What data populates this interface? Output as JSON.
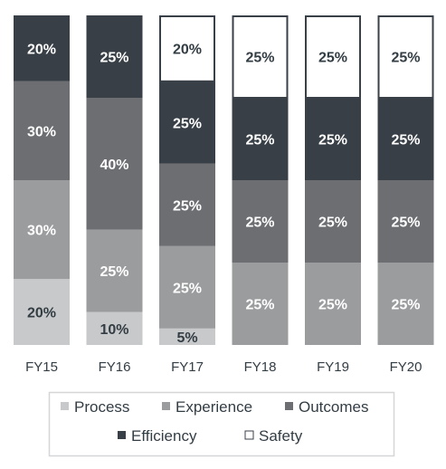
{
  "chart_data": {
    "type": "bar",
    "stacked": true,
    "normalized": true,
    "categories": [
      "FY15",
      "FY16",
      "FY17",
      "FY18",
      "FY19",
      "FY20"
    ],
    "series": [
      {
        "name": "Process",
        "color": "#c8c9cb",
        "values": [
          20,
          10,
          5,
          0,
          0,
          0
        ],
        "labels": [
          "20%",
          "10%",
          "5%",
          "",
          "",
          ""
        ]
      },
      {
        "name": "Experience",
        "color": "#9b9c9e",
        "values": [
          30,
          25,
          25,
          25,
          25,
          25
        ],
        "labels": [
          "30%",
          "25%",
          "25%",
          "25%",
          "25%",
          "25%"
        ]
      },
      {
        "name": "Outcomes",
        "color": "#6c6e72",
        "values": [
          30,
          40,
          25,
          25,
          25,
          25
        ],
        "labels": [
          "30%",
          "40%",
          "25%",
          "25%",
          "25%",
          "25%"
        ]
      },
      {
        "name": "Efficiency",
        "color": "#383f47",
        "values": [
          20,
          25,
          25,
          25,
          25,
          25
        ],
        "labels": [
          "20%",
          "25%",
          "25%",
          "25%",
          "25%",
          "25%"
        ]
      },
      {
        "name": "Safety",
        "color": "#ffffff",
        "values": [
          0,
          0,
          20,
          25,
          25,
          25
        ],
        "labels": [
          "",
          "",
          "20%",
          "25%",
          "25%",
          "25%"
        ]
      }
    ],
    "ylim": [
      0,
      100
    ],
    "grid": false,
    "legend_position": "bottom"
  }
}
